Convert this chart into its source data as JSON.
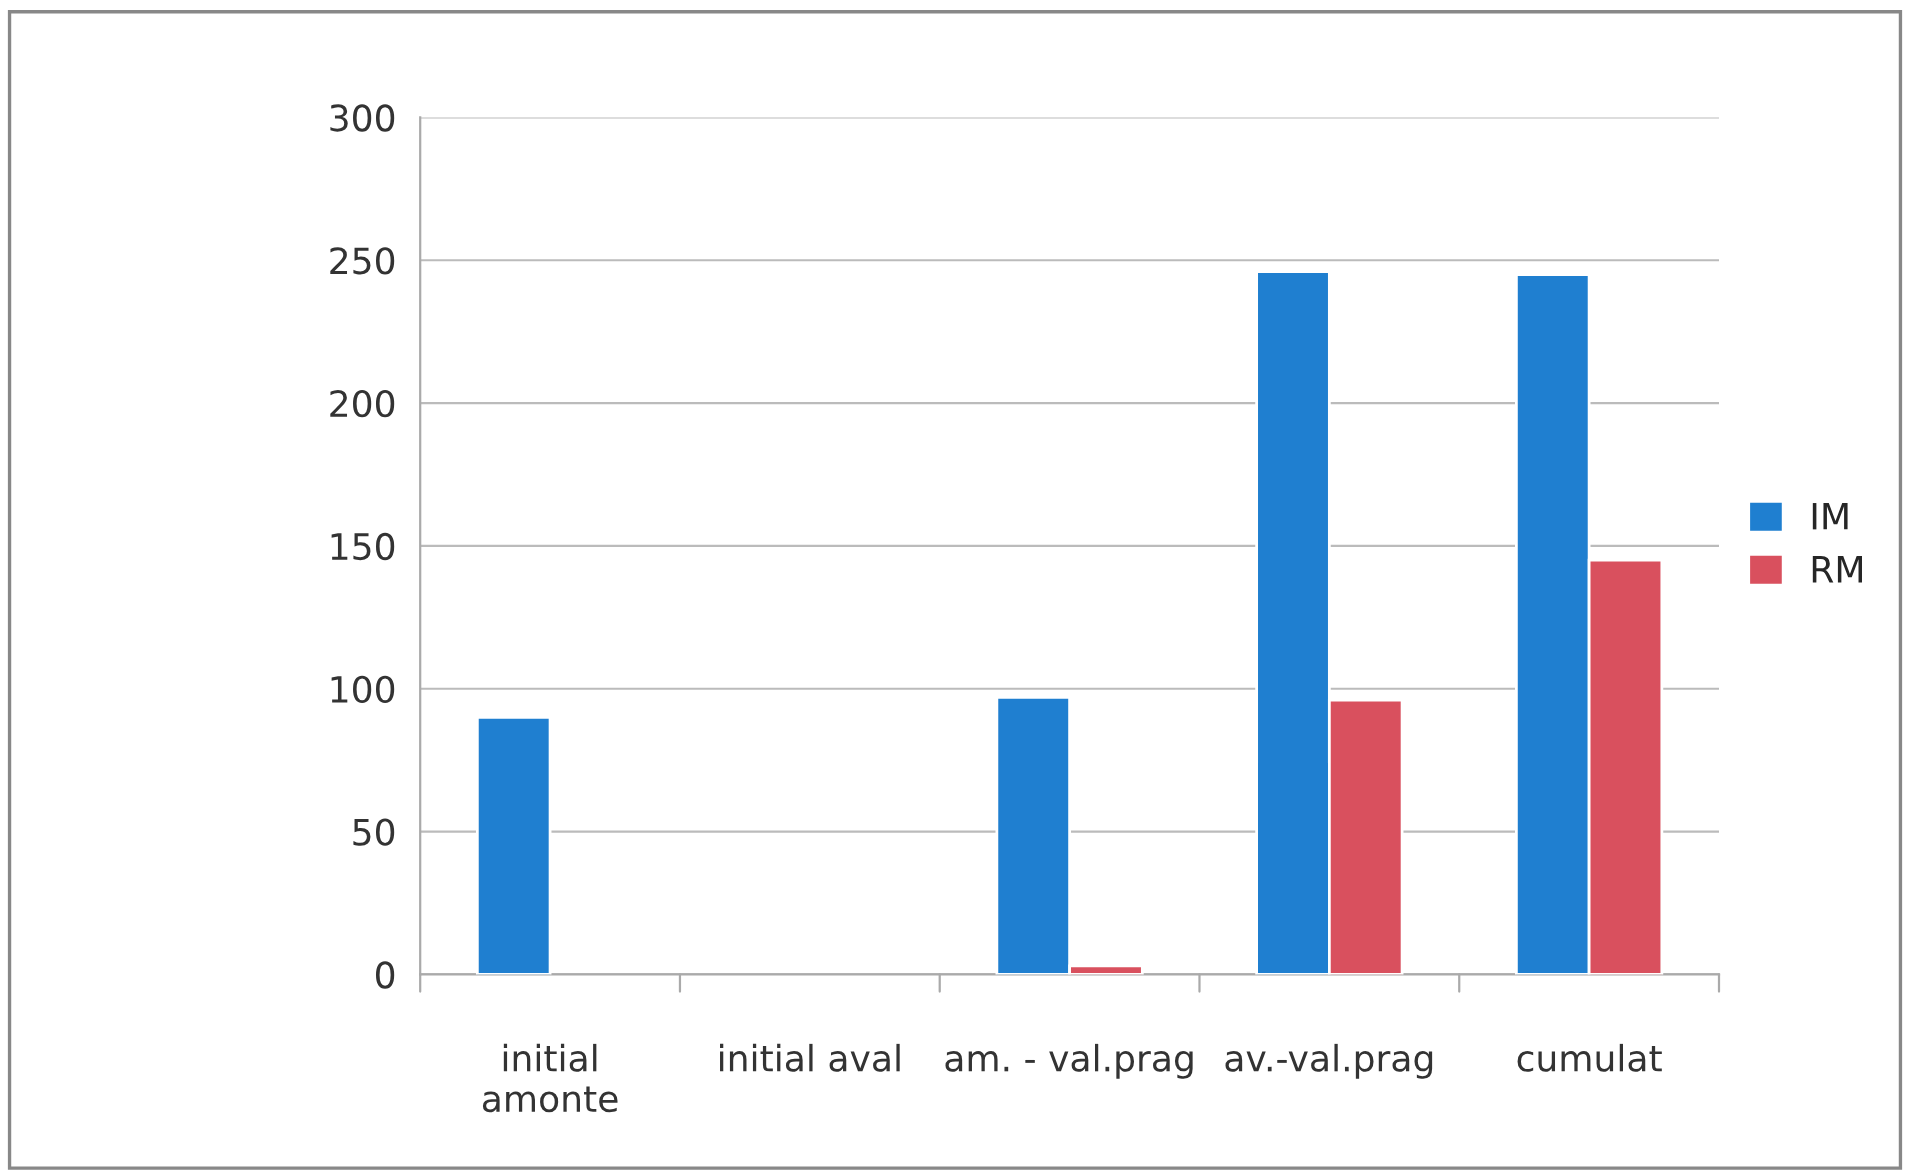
{
  "chart_data": {
    "type": "bar",
    "categories": [
      "initial\namonte",
      "initial aval",
      "am. - val.prag",
      "av.-val.prag",
      "cumulat"
    ],
    "series": [
      {
        "name": "IM",
        "color": "#1f7fd0",
        "values": [
          90,
          null,
          97,
          246,
          245
        ]
      },
      {
        "name": "RM",
        "color": "#d9505e",
        "values": [
          null,
          null,
          3,
          96,
          145
        ]
      }
    ],
    "ylim": [
      0,
      300
    ],
    "yticks": [
      0,
      50,
      100,
      150,
      200,
      250,
      300
    ],
    "grid": "y",
    "legend": "right"
  }
}
